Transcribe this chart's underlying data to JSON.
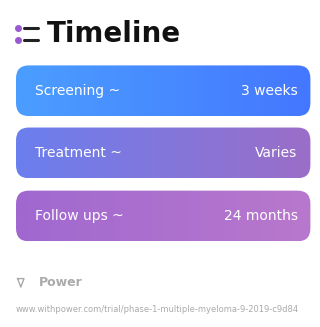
{
  "title": "Timeline",
  "title_fontsize": 20,
  "title_color": "#111111",
  "title_bold": true,
  "icon_color": "#9B59D0",
  "background_color": "#ffffff",
  "rows": [
    {
      "label": "Screening ~",
      "value": "3 weeks",
      "color_left": "#4B9EFF",
      "color_right": "#4477FF"
    },
    {
      "label": "Treatment ~",
      "value": "Varies",
      "color_left": "#6B7FEE",
      "color_right": "#9B6EC8"
    },
    {
      "label": "Follow ups ~",
      "value": "24 months",
      "color_left": "#A068D0",
      "color_right": "#B878CC"
    }
  ],
  "text_color": "#ffffff",
  "label_fontsize": 10,
  "value_fontsize": 10,
  "footer_text": "Power",
  "footer_color": "#aaaaaa",
  "footer_fontsize": 9,
  "url_text": "www.withpower.com/trial/phase-1-multiple-myeloma-9-2019-c9d84",
  "url_color": "#aaaaaa",
  "url_fontsize": 6
}
